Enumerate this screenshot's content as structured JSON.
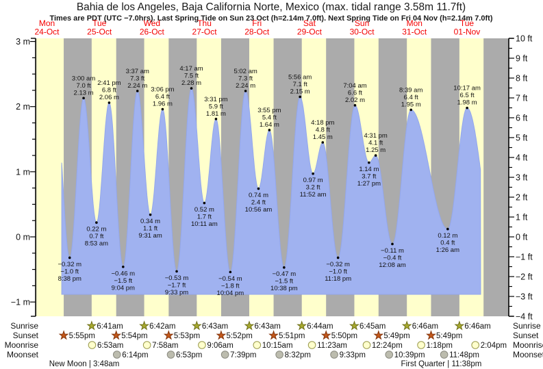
{
  "title": "Bahia de los Angeles, Baja California Norte, Mexico (max. tidal range 3.58m 11.7ft)",
  "subtitle": "Times are PDT (UTC −7.0hrs). Last Spring Tide on Sun 23 Oct (h=2.14m 7.0ft). Next Spring Tide on Fri 04 Nov (h=2.14m 7.0ft)",
  "chart_data": {
    "type": "area",
    "title": "Bahia de los Angeles, Baja California Norte, Mexico (max. tidal range 3.58m 11.7ft)",
    "ylabel_left": "meters",
    "ylabel_right": "feet",
    "ylim_m": [
      -1.2192,
      3.048
    ],
    "y_axis_left": {
      "unit": "m",
      "ticks": [
        {
          "v": 3,
          "label": "3 m"
        },
        {
          "v": 2,
          "label": "2 m"
        },
        {
          "v": 1,
          "label": "1 m"
        },
        {
          "v": 0,
          "label": "0 m"
        },
        {
          "v": -1,
          "label": "−1 m"
        }
      ]
    },
    "y_axis_right": {
      "unit": "ft",
      "ticks": [
        {
          "v": 10,
          "label": "10 ft"
        },
        {
          "v": 9,
          "label": "9 ft"
        },
        {
          "v": 8,
          "label": "8 ft"
        },
        {
          "v": 7,
          "label": "7 ft"
        },
        {
          "v": 6,
          "label": "6 ft"
        },
        {
          "v": 5,
          "label": "5 ft"
        },
        {
          "v": 4,
          "label": "4 ft"
        },
        {
          "v": 3,
          "label": "3 ft"
        },
        {
          "v": 2,
          "label": "2 ft"
        },
        {
          "v": 1,
          "label": "1 ft"
        },
        {
          "v": 0,
          "label": "0 ft"
        },
        {
          "v": -1,
          "label": "−1 ft"
        },
        {
          "v": -2,
          "label": "−2 ft"
        },
        {
          "v": -3,
          "label": "−3 ft"
        },
        {
          "v": -4,
          "label": "−4 ft"
        }
      ]
    },
    "days": [
      {
        "weekday": "Mon",
        "date": "24-Oct"
      },
      {
        "weekday": "Tue",
        "date": "25-Oct"
      },
      {
        "weekday": "Wed",
        "date": "26-Oct"
      },
      {
        "weekday": "Thu",
        "date": "27-Oct"
      },
      {
        "weekday": "Fri",
        "date": "28-Oct"
      },
      {
        "weekday": "Sat",
        "date": "29-Oct"
      },
      {
        "weekday": "Sun",
        "date": "30-Oct"
      },
      {
        "weekday": "Mon",
        "date": "31-Oct"
      },
      {
        "weekday": "Tue",
        "date": "01-Nov"
      }
    ],
    "time_origin": "hours since Mon 24-Oct 00:00 PDT",
    "tide_events": [
      {
        "t": -9.5,
        "h": 1.95,
        "type": "high",
        "offscreen": true
      },
      {
        "t": -3.3667,
        "h": -0.32,
        "type": "low",
        "m": "−0.32 m",
        "ft": "−1.0 ft",
        "time": "8:38 pm"
      },
      {
        "t": 3.0,
        "h": 2.13,
        "type": "high",
        "m": "2.13 m",
        "ft": "7.0 ft",
        "time": "3:00 am"
      },
      {
        "t": 8.8833,
        "h": 0.22,
        "type": "low",
        "m": "0.22 m",
        "ft": "0.7 ft",
        "time": "8:53 am"
      },
      {
        "t": 14.6833,
        "h": 2.06,
        "type": "high",
        "m": "2.06 m",
        "ft": "6.8 ft",
        "time": "2:41 pm"
      },
      {
        "t": 21.0667,
        "h": -0.46,
        "type": "low",
        "m": "−0.46 m",
        "ft": "−1.5 ft",
        "time": "9:04 pm"
      },
      {
        "t": 27.6167,
        "h": 2.24,
        "type": "high",
        "m": "2.24 m",
        "ft": "7.3 ft",
        "time": "3:37 am"
      },
      {
        "t": 33.5167,
        "h": 0.34,
        "type": "low",
        "m": "0.34 m",
        "ft": "1.1 ft",
        "time": "9:31 am"
      },
      {
        "t": 39.1,
        "h": 1.96,
        "type": "high",
        "m": "1.96 m",
        "ft": "6.4 ft",
        "time": "3:06 pm"
      },
      {
        "t": 45.55,
        "h": -0.53,
        "type": "low",
        "m": "−0.53 m",
        "ft": "−1.7 ft",
        "time": "9:33 pm"
      },
      {
        "t": 52.2833,
        "h": 2.28,
        "type": "high",
        "m": "2.28 m",
        "ft": "7.5 ft",
        "time": "4:17 am"
      },
      {
        "t": 58.1833,
        "h": 0.52,
        "type": "low",
        "m": "0.52 m",
        "ft": "1.7 ft",
        "time": "10:11 am"
      },
      {
        "t": 63.5167,
        "h": 1.81,
        "type": "high",
        "m": "1.81 m",
        "ft": "5.9 ft",
        "time": "3:31 pm"
      },
      {
        "t": 70.0667,
        "h": -0.54,
        "type": "low",
        "m": "−0.54 m",
        "ft": "−1.8 ft",
        "time": "10:04 pm"
      },
      {
        "t": 77.0333,
        "h": 2.24,
        "type": "high",
        "m": "2.24 m",
        "ft": "7.3 ft",
        "time": "5:02 am"
      },
      {
        "t": 82.9333,
        "h": 0.74,
        "type": "low",
        "m": "0.74 m",
        "ft": "2.4 ft",
        "time": "10:56 am"
      },
      {
        "t": 87.9167,
        "h": 1.64,
        "type": "high",
        "m": "1.64 m",
        "ft": "5.4 ft",
        "time": "3:55 pm"
      },
      {
        "t": 94.6333,
        "h": -0.47,
        "type": "low",
        "m": "−0.47 m",
        "ft": "−1.5 ft",
        "time": "10:38 pm"
      },
      {
        "t": 101.9333,
        "h": 2.15,
        "type": "high",
        "m": "2.15 m",
        "ft": "7.1 ft",
        "time": "5:56 am"
      },
      {
        "t": 107.8667,
        "h": 0.97,
        "type": "low",
        "m": "0.97 m",
        "ft": "3.2 ft",
        "time": "11:52 am"
      },
      {
        "t": 112.3,
        "h": 1.45,
        "type": "high",
        "m": "1.45 m",
        "ft": "4.8 ft",
        "time": "4:18 pm"
      },
      {
        "t": 119.3,
        "h": -0.32,
        "type": "low",
        "m": "−0.32 m",
        "ft": "−1.0 ft",
        "time": "11:18 pm"
      },
      {
        "t": 127.0667,
        "h": 2.02,
        "type": "high",
        "m": "2.02 m",
        "ft": "6.6 ft",
        "time": "7:04 am"
      },
      {
        "t": 133.45,
        "h": 1.14,
        "type": "low",
        "m": "1.14 m",
        "ft": "3.7 ft",
        "time": "1:27 pm"
      },
      {
        "t": 136.5167,
        "h": 1.25,
        "type": "high",
        "m": "1.25 m",
        "ft": "4.1 ft",
        "time": "4:31 pm"
      },
      {
        "t": 144.1333,
        "h": -0.11,
        "type": "low",
        "m": "−0.11 m",
        "ft": "−0.4 ft",
        "time": "12:08 am"
      },
      {
        "t": 152.65,
        "h": 1.95,
        "type": "high",
        "m": "1.95 m",
        "ft": "6.4 ft",
        "time": "8:39 am"
      },
      {
        "t": 169.4333,
        "h": 0.12,
        "type": "low",
        "m": "0.12 m",
        "ft": "0.4 ft",
        "time": "1:26 am"
      },
      {
        "t": 178.2833,
        "h": 1.98,
        "type": "high",
        "m": "1.98 m",
        "ft": "6.5 ft",
        "time": "10:17 am"
      },
      {
        "t": 192.0,
        "h": -0.3,
        "type": "low",
        "offscreen": true
      }
    ],
    "curve": {
      "t_start": -7.0,
      "t_end": 184.5
    },
    "night_bands": [
      [
        -18.5,
        -18.4
      ],
      [
        -6.0833,
        6.6833
      ],
      [
        17.9,
        30.7
      ],
      [
        41.8833,
        54.7167
      ],
      [
        65.8667,
        78.7167
      ],
      [
        89.85,
        102.7333
      ],
      [
        113.8333,
        126.75
      ],
      [
        137.8167,
        150.7667
      ],
      [
        161.8167,
        174.7667
      ],
      [
        185.8167,
        197.5
      ]
    ],
    "astro_rows": [
      {
        "name": "Sunrise",
        "icon": "sunrise-star",
        "events": [
          {
            "t": 6.6833,
            "label": "6:41am"
          },
          {
            "t": 30.7,
            "label": "6:42am"
          },
          {
            "t": 54.7167,
            "label": "6:43am"
          },
          {
            "t": 78.7167,
            "label": "6:43am"
          },
          {
            "t": 102.7333,
            "label": "6:44am"
          },
          {
            "t": 126.75,
            "label": "6:45am"
          },
          {
            "t": 150.7667,
            "label": "6:46am"
          },
          {
            "t": 174.7667,
            "label": "6:46am"
          }
        ]
      },
      {
        "name": "Sunset",
        "icon": "sunset-star",
        "events": [
          {
            "t": -6.0833,
            "label": "5:55pm"
          },
          {
            "t": 17.9,
            "label": "5:54pm"
          },
          {
            "t": 41.8833,
            "label": "5:53pm"
          },
          {
            "t": 65.8667,
            "label": "5:52pm"
          },
          {
            "t": 89.85,
            "label": "5:51pm"
          },
          {
            "t": 113.8333,
            "label": "5:50pm"
          },
          {
            "t": 137.8167,
            "label": "5:49pm"
          },
          {
            "t": 161.8167,
            "label": "5:49pm"
          }
        ]
      },
      {
        "name": "Moonrise",
        "icon": "moonrise-circle",
        "events": [
          {
            "t": 6.8833,
            "label": "6:53am"
          },
          {
            "t": 31.9667,
            "label": "7:58am"
          },
          {
            "t": 57.1,
            "label": "9:06am"
          },
          {
            "t": 82.25,
            "label": "10:15am"
          },
          {
            "t": 107.3833,
            "label": "11:23am"
          },
          {
            "t": 132.4,
            "label": "12:24pm"
          },
          {
            "t": 157.3,
            "label": "1:18pm"
          },
          {
            "t": 182.0667,
            "label": "2:04pm"
          }
        ]
      },
      {
        "name": "Moonset",
        "icon": "moonset-circle",
        "events": [
          {
            "t": 18.2333,
            "label": "6:14pm"
          },
          {
            "t": 42.8833,
            "label": "6:53pm"
          },
          {
            "t": 67.65,
            "label": "7:39pm"
          },
          {
            "t": 92.5333,
            "label": "8:32pm"
          },
          {
            "t": 117.55,
            "label": "9:33pm"
          },
          {
            "t": 142.65,
            "label": "10:39pm"
          },
          {
            "t": 167.8,
            "label": "11:48pm"
          }
        ]
      }
    ],
    "moon_phases": [
      {
        "t": 3.3,
        "label": "New Moon | 3:48am"
      },
      {
        "t": 166.5,
        "label": "First Quarter | 11:38pm"
      }
    ],
    "colors": {
      "day_band": "#ffffcc",
      "night_band": "#ababab",
      "water_fill": "#a0b2f0",
      "water_edge": "#93a7ec",
      "day_label": "#f40000",
      "axis": "#000000",
      "annotation_text": "#111111",
      "sunrise_star_fill": "#a8aa2e",
      "sunrise_star_edge": "#6f7018",
      "sunset_star_fill": "#c4581a",
      "sunset_star_edge": "#84350c",
      "moonrise_circle_fill": "#ffffcc",
      "moonrise_circle_edge": "#99994d",
      "moonset_circle_fill": "#bcbcae",
      "moonset_circle_edge": "#8a8a80",
      "dot": "#000000"
    }
  }
}
